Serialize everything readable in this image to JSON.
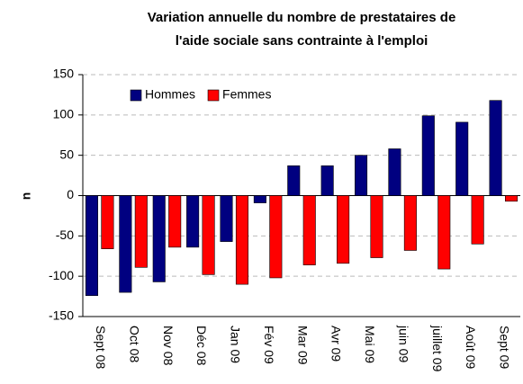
{
  "chart_data": {
    "type": "bar",
    "title": [
      "Variation annuelle du nombre de prestataires de",
      "l'aide sociale sans contrainte à l'emploi"
    ],
    "y_label": "n",
    "categories": [
      "Sept 08",
      "Oct 08",
      "Nov 08",
      "Déc 08",
      "Jan 09",
      "Fév 09",
      "Mar 09",
      "Avr 09",
      "Mai 09",
      "juin 09",
      "juillet 09",
      "Août 09",
      "Sept 09"
    ],
    "series": [
      {
        "name": "Hommes",
        "color": "#000080",
        "values": [
          -124,
          -120,
          -107,
          -64,
          -57,
          -9,
          37,
          37,
          50,
          58,
          99,
          91,
          118
        ]
      },
      {
        "name": "Femmes",
        "color": "#ff0000",
        "values": [
          -66,
          -89,
          -64,
          -98,
          -110,
          -102,
          -86,
          -84,
          -77,
          -68,
          -91,
          -60,
          -7
        ]
      }
    ],
    "ylim": [
      -150,
      150
    ],
    "yticks": [
      -150,
      -100,
      -50,
      0,
      50,
      100,
      150
    ],
    "grid": true,
    "legend": "top-left"
  }
}
